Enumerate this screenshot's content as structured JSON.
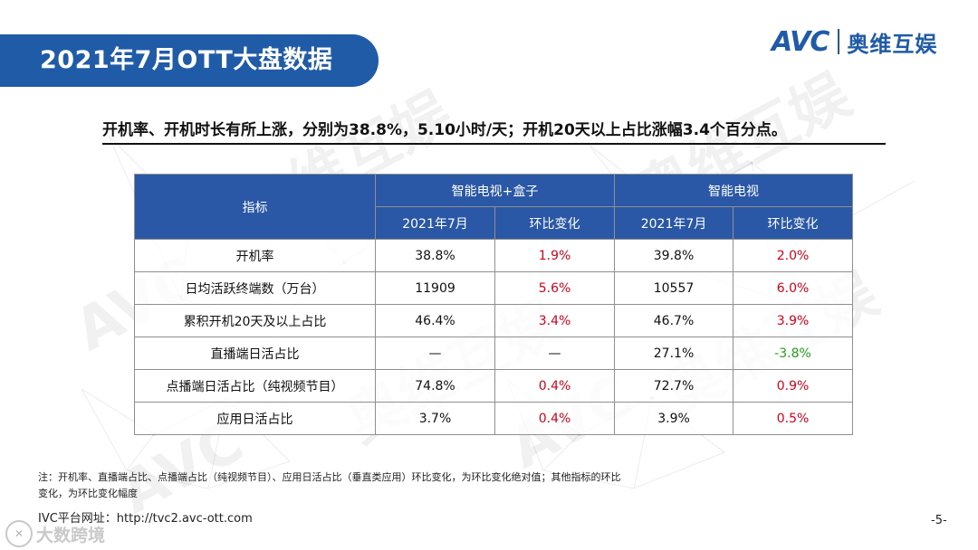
{
  "slide": {
    "title": "2021年7月OTT大盘数据",
    "headline": "开机率、开机时长有所上涨，分别为38.8%，5.10小时/天；开机20天以上占比涨幅3.4个百分点。",
    "page_number": "-5-"
  },
  "logo": {
    "mark": "AVC",
    "name": "奥维互娱"
  },
  "watermark": {
    "mark": "AVC",
    "name": "奥维互娱"
  },
  "colors": {
    "brand_blue": "#1f5ba6",
    "header_blue": "#2a58a6",
    "increase": "#d9001b",
    "decrease": "#22a21c"
  },
  "chart_data": {
    "type": "table",
    "columns": {
      "indicator": "指标",
      "group1": "智能电视+盒子",
      "group2": "智能电视",
      "sub_month": "2021年7月",
      "sub_change": "环比变化"
    },
    "rows": [
      {
        "indicator": "开机率",
        "g1_value": "38.8%",
        "g1_change": "1.9%",
        "g2_value": "39.8%",
        "g2_change": "2.0%"
      },
      {
        "indicator": "日均活跃终端数（万台）",
        "g1_value": "11909",
        "g1_change": "5.6%",
        "g2_value": "10557",
        "g2_change": "6.0%"
      },
      {
        "indicator": "累积开机20天及以上占比",
        "g1_value": "46.4%",
        "g1_change": "3.4%",
        "g2_value": "46.7%",
        "g2_change": "3.9%"
      },
      {
        "indicator": "直播端日活占比",
        "g1_value": "—",
        "g1_change": "—",
        "g2_value": "27.1%",
        "g2_change": "-3.8%"
      },
      {
        "indicator": "点播端日活占比（纯视频节目）",
        "g1_value": "74.8%",
        "g1_change": "0.4%",
        "g2_value": "72.7%",
        "g2_change": "0.9%"
      },
      {
        "indicator": "应用日活占比",
        "g1_value": "3.7%",
        "g1_change": "0.4%",
        "g2_value": "3.9%",
        "g2_change": "0.5%"
      }
    ]
  },
  "footnote": {
    "line1": "注：开机率、直播端占比、点播端占比（纯视频节目）、应用日活占比（垂直类应用）环比变化，为环比变化绝对值；其他指标的环比",
    "line2": "变化，为环比变化幅度",
    "url": "IVC平台网址：http://tvc2.avc-ott.com"
  },
  "badge": {
    "text": "大数跨境"
  }
}
